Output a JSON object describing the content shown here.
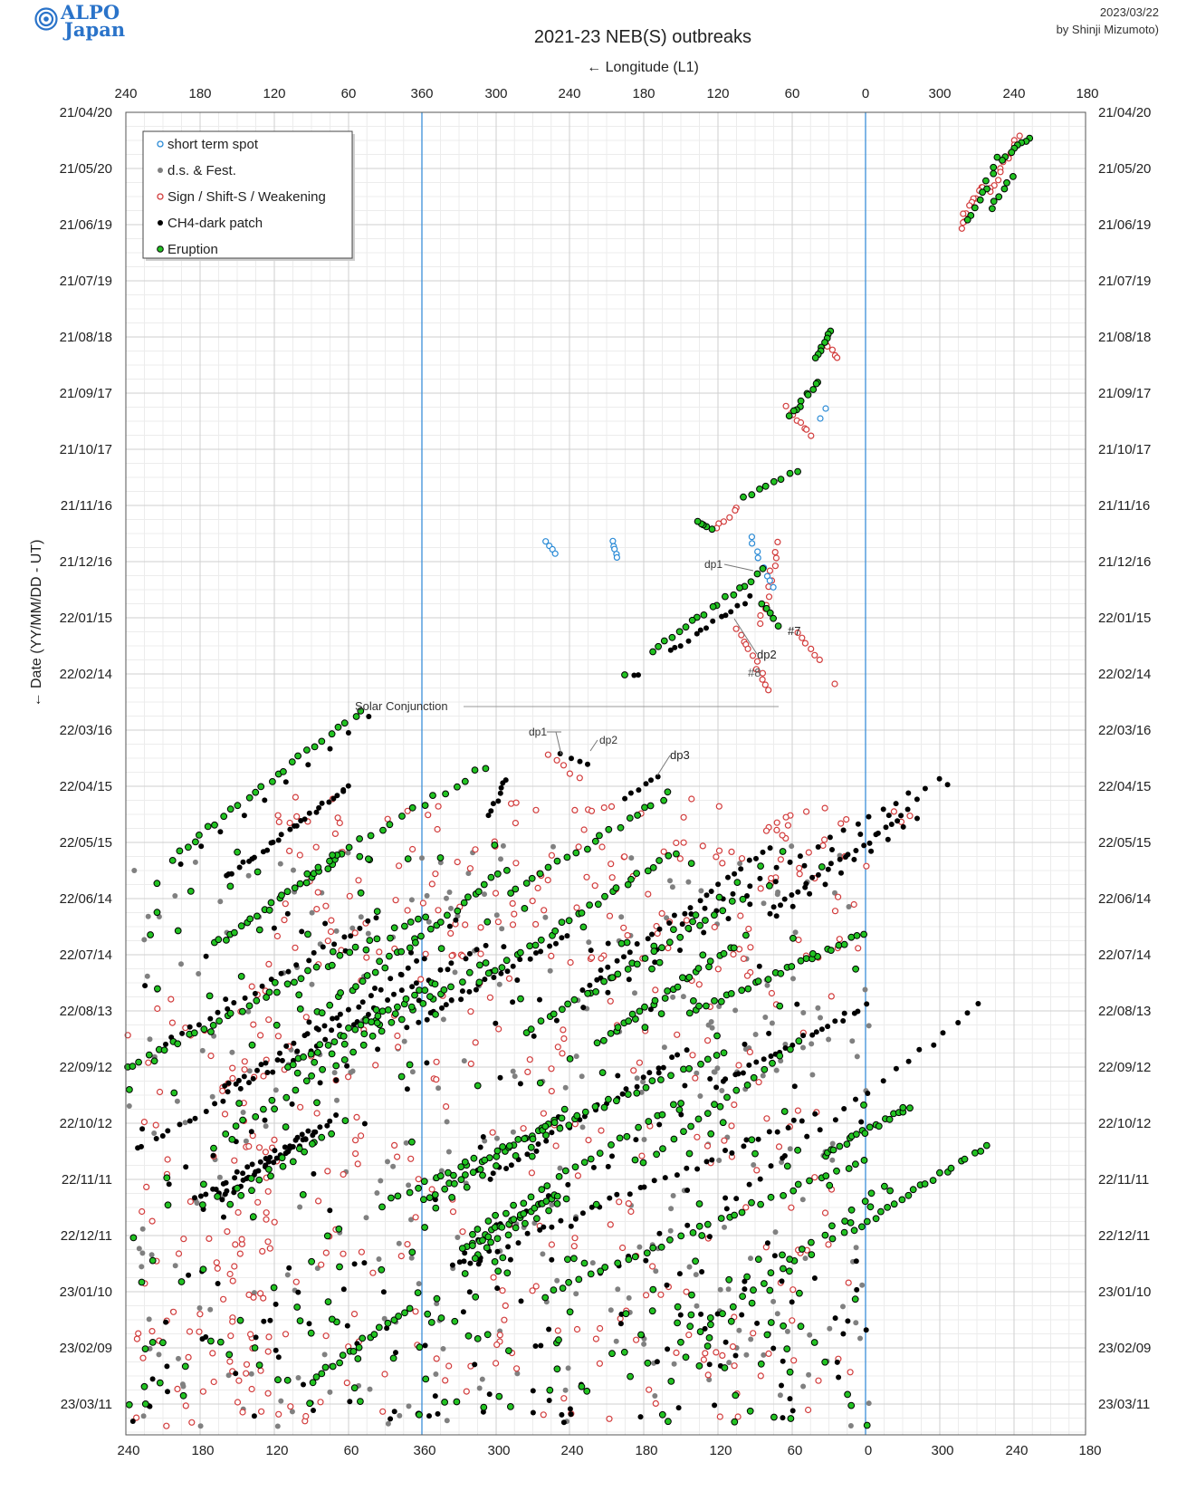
{
  "header": {
    "logo_line1": "ALPO",
    "logo_line2": "Japan",
    "date": "2023/03/22",
    "author": "by Shinji Mizumoto)",
    "title": "2021-23 NEB(S) outbreaks",
    "x_axis_title": "← Longitude (L1)",
    "y_axis_title": "← Date (YY/MM/DD - UT)"
  },
  "colors": {
    "short_term_spot": "#2b8bd6",
    "ds_fest": "#808080",
    "sign": "#d23c3c",
    "ch4": "#000000",
    "eruption": "#22c322",
    "ref_line": "#3b8fd9",
    "grid_major": "#cfcfcf",
    "grid_minor": "#ececec"
  },
  "annotations": {
    "solar_conjunction": "Solar Conjunction",
    "dp1_a": "dp1",
    "dp2_a": "dp2",
    "num7": "#7",
    "num8": "#8",
    "dp1_b": "dp1",
    "dp2_b": "dp2",
    "dp3": "dp3"
  },
  "chart_data": {
    "type": "scatter",
    "x_axis": {
      "label": "← Longitude (L1)",
      "tick_labels": [
        "240",
        "180",
        "120",
        "60",
        "360",
        "300",
        "240",
        "180",
        "120",
        "60",
        "0",
        "300",
        "240",
        "180"
      ],
      "ticks_note": "reading right to left: 180, 240, 300, 0/360, 60, 120, 180, 240, 300, 360 (wraps), 60, 120, 180, 240 — extended longitude axis spanning three rotations"
    },
    "y_axis": {
      "label": "← Date (YY/MM/DD - UT)",
      "tick_labels": [
        "21/04/20",
        "21/05/20",
        "21/06/19",
        "21/07/19",
        "21/08/18",
        "21/09/17",
        "21/10/17",
        "21/11/16",
        "21/12/16",
        "22/01/15",
        "22/02/14",
        "22/03/16",
        "22/04/15",
        "22/05/15",
        "22/06/14",
        "22/07/14",
        "22/08/13",
        "22/09/12",
        "22/10/12",
        "22/11/11",
        "22/12/11",
        "23/01/10",
        "23/02/09",
        "23/03/11"
      ],
      "range": [
        "21/04/20",
        "23/04/01"
      ],
      "direction": "dates increase downward"
    },
    "grid": true,
    "legend": {
      "position": "top-left",
      "entries": [
        {
          "name": "short term spot",
          "marker": "open circle",
          "color": "#2b8bd6"
        },
        {
          "name": "d.s. & Fest.",
          "marker": "filled circle",
          "color": "#808080"
        },
        {
          "name": "Sign / Shift-S / Weakening",
          "marker": "open circle",
          "color": "#d23c3c"
        },
        {
          "name": "CH4-dark patch",
          "marker": "filled circle",
          "color": "#000000"
        },
        {
          "name": "Eruption",
          "marker": "filled circle, black edge",
          "color": "#22c322"
        }
      ]
    },
    "reference_lines": [
      {
        "x_label": "360",
        "color": "#3b8fd9"
      },
      {
        "x_label": "0",
        "color": "#3b8fd9"
      }
    ],
    "note": "Scatter of several thousand outbreak observations; individual values not labeled. Dense drifting tracks from 22/04 to 23/03 across the whole longitude range, isolated tracks in 2021 near longitudes 240–300 (May–June 2021) and 60–120 (Aug 2021–Feb 2022)."
  }
}
